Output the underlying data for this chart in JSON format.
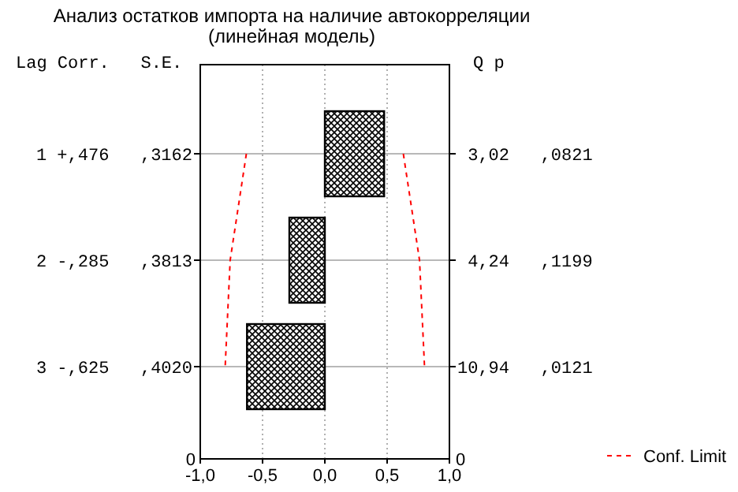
{
  "chart_data": {
    "type": "bar",
    "orientation": "horizontal",
    "title": "Анализ остатков импорта на наличие автокорреляции (линейная модель)",
    "categories": [
      "1 +,476   ,3162",
      "2 -,285   ,3813",
      "3 -,625   ,4020"
    ],
    "series": [
      {
        "color": "#000000",
        "values": [
          0.476,
          -0.285,
          -0.625
        ]
      },
      {
        "type": "line",
        "name": "Conf. Limit",
        "color": "#ff0000",
        "line_style": "dashed",
        "values": [
          -0.63,
          -0.76,
          -0.8
        ]
      },
      {
        "type": "line",
        "color": "#ff0000",
        "line_style": "dashed",
        "values": [
          0.63,
          0.76,
          0.8
        ]
      }
    ],
    "xlim": [
      -1,
      1
    ],
    "xticks": [
      {
        "value": -1,
        "label": "-1,0"
      },
      {
        "value": -0.5,
        "label": "-0,5"
      },
      {
        "value": 0,
        "label": "0,0"
      },
      {
        "value": 0.5,
        "label": "0,5"
      },
      {
        "value": 1,
        "label": "1,0"
      }
    ],
    "grid": true,
    "legend": "bottom right",
    "annotations": [
      "Lag Corr.   S.E.",
      "Q p",
      "0",
      "0",
      " 3,02   ,0821",
      " 4,24   ,1199",
      "10,94   ,0121"
    ]
  }
}
